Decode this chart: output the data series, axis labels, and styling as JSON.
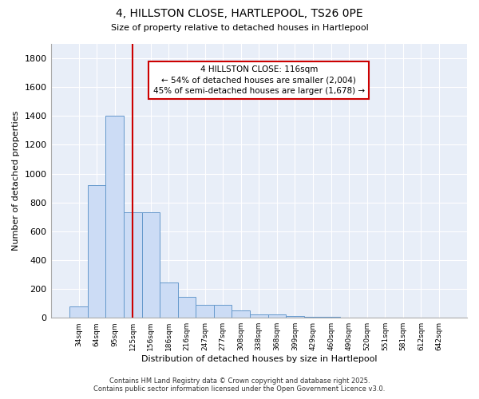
{
  "title_line1": "4, HILLSTON CLOSE, HARTLEPOOL, TS26 0PE",
  "title_line2": "Size of property relative to detached houses in Hartlepool",
  "xlabel": "Distribution of detached houses by size in Hartlepool",
  "ylabel": "Number of detached properties",
  "categories": [
    "34sqm",
    "64sqm",
    "95sqm",
    "125sqm",
    "156sqm",
    "186sqm",
    "216sqm",
    "247sqm",
    "277sqm",
    "308sqm",
    "338sqm",
    "368sqm",
    "399sqm",
    "429sqm",
    "460sqm",
    "490sqm",
    "520sqm",
    "551sqm",
    "581sqm",
    "612sqm",
    "642sqm"
  ],
  "values": [
    80,
    920,
    1400,
    730,
    730,
    245,
    145,
    90,
    90,
    50,
    25,
    25,
    10,
    5,
    5,
    2,
    0,
    0,
    0,
    2,
    0
  ],
  "bar_color": "#ccdcf5",
  "bar_edge_color": "#6699cc",
  "red_line_index": 3,
  "annotation_line1": "4 HILLSTON CLOSE: 116sqm",
  "annotation_line2": "← 54% of detached houses are smaller (2,004)",
  "annotation_line3": "45% of semi-detached houses are larger (1,678) →",
  "annotation_box_color": "#ffffff",
  "annotation_box_edge": "#cc0000",
  "ylim": [
    0,
    1900
  ],
  "yticks": [
    0,
    200,
    400,
    600,
    800,
    1000,
    1200,
    1400,
    1600,
    1800
  ],
  "bg_color": "#ffffff",
  "plot_bg_color": "#e8eef8",
  "grid_color": "#ffffff",
  "footer_line1": "Contains HM Land Registry data © Crown copyright and database right 2025.",
  "footer_line2": "Contains public sector information licensed under the Open Government Licence v3.0."
}
